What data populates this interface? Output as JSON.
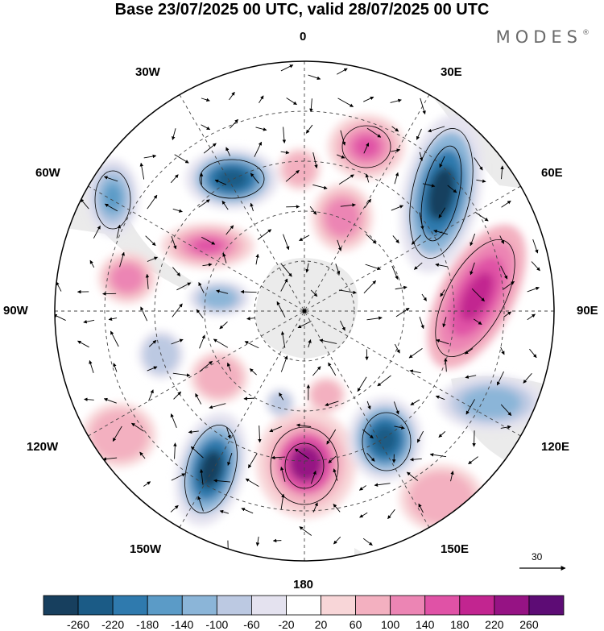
{
  "title": "Base 23/07/2025 00 UTC, valid 28/07/2025 00 UTC",
  "brand": "MODES",
  "brand_mark": "®",
  "longitude_labels": {
    "lon_0": "0",
    "lon_30e": "30E",
    "lon_60e": "60E",
    "lon_90e": "90E",
    "lon_120e": "120E",
    "lon_150e": "150E",
    "lon_180": "180",
    "lon_150w": "150W",
    "lon_120w": "120W",
    "lon_90w": "90W",
    "lon_60w": "60W",
    "lon_30w": "30W"
  },
  "vector_scale": {
    "value": "30"
  },
  "colorbar": {
    "colors": [
      "#173f5e",
      "#1b5b86",
      "#2f7aae",
      "#5b9bc7",
      "#8bb5d8",
      "#bcc9e2",
      "#e4e2ef",
      "#ffffff",
      "#f8d6d8",
      "#f3b0c0",
      "#ec85b4",
      "#e052a6",
      "#c22590",
      "#961384",
      "#5d0c75"
    ],
    "tick_labels": [
      "-260",
      "-220",
      "-180",
      "-140",
      "-100",
      "-60",
      "-20",
      "20",
      "60",
      "100",
      "140",
      "180",
      "220",
      "260"
    ]
  },
  "map": {
    "land_color": "#ebebeb",
    "grid_color": "#444444"
  }
}
